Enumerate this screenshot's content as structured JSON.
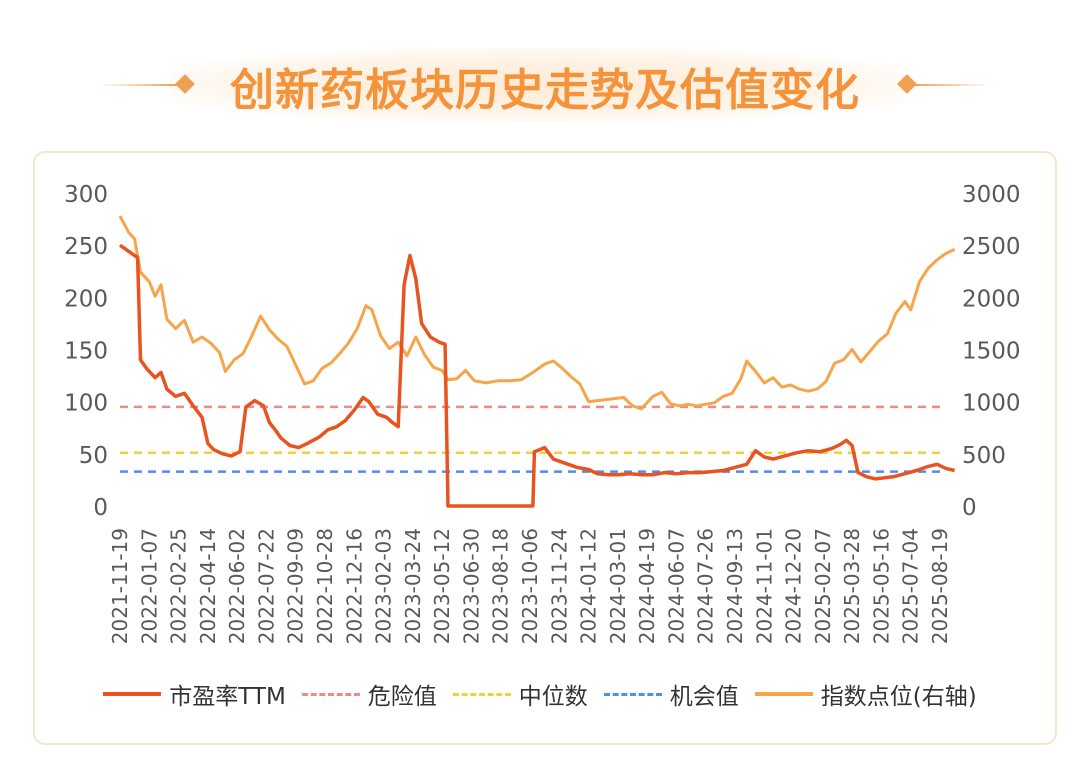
{
  "title": "创新药板块历史走势及估值变化",
  "colors": {
    "pe": "#e8531f",
    "danger": "#f08a8a",
    "median": "#f2d03c",
    "opportunity": "#4f8fe6",
    "index": "#f5a54a",
    "axis_text": "#595959",
    "title": "#f5933b"
  },
  "chart_data": {
    "type": "line",
    "x_ticks": [
      "2021-11-19",
      "2022-01-07",
      "2022-02-25",
      "2022-04-14",
      "2022-06-02",
      "2022-07-22",
      "2022-09-09",
      "2022-10-28",
      "2022-12-16",
      "2023-02-03",
      "2023-03-24",
      "2023-05-12",
      "2023-06-30",
      "2023-08-18",
      "2023-10-06",
      "2023-11-24",
      "2024-01-12",
      "2024-03-01",
      "2024-04-19",
      "2024-06-07",
      "2024-07-26",
      "2024-09-13",
      "2024-11-01",
      "2024-12-20",
      "2025-02-07",
      "2025-03-28",
      "2025-05-16",
      "2025-07-04",
      "2025-08-19"
    ],
    "y_left": {
      "ticks": [
        0,
        50,
        100,
        150,
        200,
        250,
        300
      ],
      "ylim": [
        0,
        300
      ]
    },
    "y_right": {
      "ticks": [
        0,
        500,
        1000,
        1500,
        2000,
        2500,
        3000
      ],
      "ylim": [
        0,
        3000
      ]
    },
    "legend_position": "bottom",
    "series": [
      {
        "name": "市盈率TTM",
        "axis": "left",
        "style": "solid",
        "points": [
          [
            0,
            250
          ],
          [
            0.3,
            244
          ],
          [
            0.6,
            238
          ],
          [
            0.7,
            140
          ],
          [
            0.9,
            132
          ],
          [
            1.2,
            123
          ],
          [
            1.4,
            128
          ],
          [
            1.6,
            112
          ],
          [
            1.9,
            105
          ],
          [
            2.2,
            108
          ],
          [
            2.5,
            96
          ],
          [
            2.8,
            85
          ],
          [
            3.0,
            60
          ],
          [
            3.2,
            54
          ],
          [
            3.5,
            50
          ],
          [
            3.8,
            48
          ],
          [
            4.1,
            52
          ],
          [
            4.3,
            95
          ],
          [
            4.6,
            101
          ],
          [
            4.9,
            96
          ],
          [
            5.1,
            80
          ],
          [
            5.3,
            73
          ],
          [
            5.5,
            65
          ],
          [
            5.8,
            58
          ],
          [
            6.1,
            56
          ],
          [
            6.4,
            60
          ],
          [
            6.8,
            66
          ],
          [
            7.1,
            73
          ],
          [
            7.4,
            76
          ],
          [
            7.7,
            82
          ],
          [
            8.0,
            92
          ],
          [
            8.3,
            104
          ],
          [
            8.5,
            100
          ],
          [
            8.8,
            88
          ],
          [
            9.1,
            85
          ],
          [
            9.3,
            80
          ],
          [
            9.5,
            76
          ],
          [
            9.7,
            212
          ],
          [
            9.9,
            240
          ],
          [
            10.1,
            218
          ],
          [
            10.3,
            175
          ],
          [
            10.6,
            162
          ],
          [
            10.9,
            157
          ],
          [
            11.1,
            155
          ],
          [
            11.2,
            0
          ],
          [
            12.5,
            0
          ],
          [
            13.7,
            0
          ],
          [
            14.1,
            0
          ],
          [
            14.15,
            52
          ],
          [
            14.5,
            56
          ],
          [
            14.8,
            45
          ],
          [
            15.2,
            41
          ],
          [
            15.6,
            37
          ],
          [
            16.0,
            35
          ],
          [
            16.3,
            31
          ],
          [
            16.7,
            30
          ],
          [
            17.0,
            30
          ],
          [
            17.4,
            31
          ],
          [
            17.8,
            30
          ],
          [
            18.2,
            30
          ],
          [
            18.6,
            32
          ],
          [
            19.0,
            31
          ],
          [
            19.4,
            32
          ],
          [
            19.8,
            32
          ],
          [
            20.2,
            33
          ],
          [
            20.6,
            34
          ],
          [
            21.0,
            37
          ],
          [
            21.4,
            40
          ],
          [
            21.7,
            53
          ],
          [
            22.0,
            47
          ],
          [
            22.3,
            45
          ],
          [
            22.7,
            48
          ],
          [
            23.1,
            51
          ],
          [
            23.5,
            53
          ],
          [
            23.9,
            52
          ],
          [
            24.3,
            55
          ],
          [
            24.6,
            59
          ],
          [
            24.8,
            63
          ],
          [
            25.0,
            58
          ],
          [
            25.2,
            32
          ],
          [
            25.5,
            28
          ],
          [
            25.8,
            26
          ],
          [
            26.1,
            27
          ],
          [
            26.4,
            28
          ],
          [
            26.8,
            31
          ],
          [
            27.2,
            34
          ],
          [
            27.6,
            38
          ],
          [
            27.9,
            40
          ],
          [
            28.2,
            36
          ],
          [
            28.5,
            34
          ]
        ]
      },
      {
        "name": "危险值",
        "axis": "left",
        "style": "dashed",
        "value": 95
      },
      {
        "name": "中位数",
        "axis": "left",
        "style": "dashed",
        "value": 51
      },
      {
        "name": "机会值",
        "axis": "left",
        "style": "dashed",
        "value": 33
      },
      {
        "name": "指数点位(右轴)",
        "axis": "right",
        "style": "solid",
        "points": [
          [
            0,
            2780
          ],
          [
            0.3,
            2620
          ],
          [
            0.5,
            2560
          ],
          [
            0.7,
            2240
          ],
          [
            1.0,
            2150
          ],
          [
            1.2,
            2010
          ],
          [
            1.4,
            2120
          ],
          [
            1.6,
            1790
          ],
          [
            1.9,
            1700
          ],
          [
            2.2,
            1780
          ],
          [
            2.5,
            1570
          ],
          [
            2.8,
            1620
          ],
          [
            3.1,
            1560
          ],
          [
            3.4,
            1470
          ],
          [
            3.6,
            1290
          ],
          [
            3.9,
            1400
          ],
          [
            4.2,
            1460
          ],
          [
            4.5,
            1630
          ],
          [
            4.8,
            1820
          ],
          [
            5.1,
            1690
          ],
          [
            5.4,
            1600
          ],
          [
            5.7,
            1530
          ],
          [
            6.0,
            1350
          ],
          [
            6.3,
            1170
          ],
          [
            6.6,
            1200
          ],
          [
            6.9,
            1320
          ],
          [
            7.2,
            1370
          ],
          [
            7.5,
            1460
          ],
          [
            7.8,
            1560
          ],
          [
            8.1,
            1700
          ],
          [
            8.4,
            1920
          ],
          [
            8.6,
            1880
          ],
          [
            8.9,
            1630
          ],
          [
            9.2,
            1510
          ],
          [
            9.5,
            1570
          ],
          [
            9.8,
            1440
          ],
          [
            10.1,
            1620
          ],
          [
            10.4,
            1450
          ],
          [
            10.7,
            1330
          ],
          [
            11.0,
            1300
          ],
          [
            11.2,
            1210
          ],
          [
            11.5,
            1220
          ],
          [
            11.8,
            1300
          ],
          [
            12.1,
            1200
          ],
          [
            12.5,
            1180
          ],
          [
            12.9,
            1200
          ],
          [
            13.3,
            1200
          ],
          [
            13.7,
            1210
          ],
          [
            14.1,
            1280
          ],
          [
            14.5,
            1360
          ],
          [
            14.8,
            1390
          ],
          [
            15.1,
            1320
          ],
          [
            15.4,
            1240
          ],
          [
            15.7,
            1170
          ],
          [
            16.0,
            1000
          ],
          [
            16.3,
            1010
          ],
          [
            16.6,
            1020
          ],
          [
            16.9,
            1030
          ],
          [
            17.2,
            1040
          ],
          [
            17.5,
            960
          ],
          [
            17.8,
            930
          ],
          [
            18.2,
            1050
          ],
          [
            18.5,
            1090
          ],
          [
            18.8,
            980
          ],
          [
            19.1,
            960
          ],
          [
            19.4,
            975
          ],
          [
            19.7,
            960
          ],
          [
            20.0,
            975
          ],
          [
            20.3,
            990
          ],
          [
            20.6,
            1050
          ],
          [
            20.9,
            1080
          ],
          [
            21.2,
            1220
          ],
          [
            21.4,
            1390
          ],
          [
            21.7,
            1290
          ],
          [
            22.0,
            1180
          ],
          [
            22.3,
            1230
          ],
          [
            22.6,
            1140
          ],
          [
            22.9,
            1160
          ],
          [
            23.2,
            1120
          ],
          [
            23.5,
            1100
          ],
          [
            23.8,
            1120
          ],
          [
            24.1,
            1190
          ],
          [
            24.4,
            1370
          ],
          [
            24.7,
            1400
          ],
          [
            25.0,
            1500
          ],
          [
            25.3,
            1380
          ],
          [
            25.6,
            1480
          ],
          [
            25.9,
            1580
          ],
          [
            26.2,
            1650
          ],
          [
            26.5,
            1850
          ],
          [
            26.8,
            1960
          ],
          [
            27.0,
            1880
          ],
          [
            27.3,
            2150
          ],
          [
            27.6,
            2280
          ],
          [
            27.9,
            2360
          ],
          [
            28.2,
            2420
          ],
          [
            28.5,
            2460
          ]
        ]
      }
    ]
  }
}
